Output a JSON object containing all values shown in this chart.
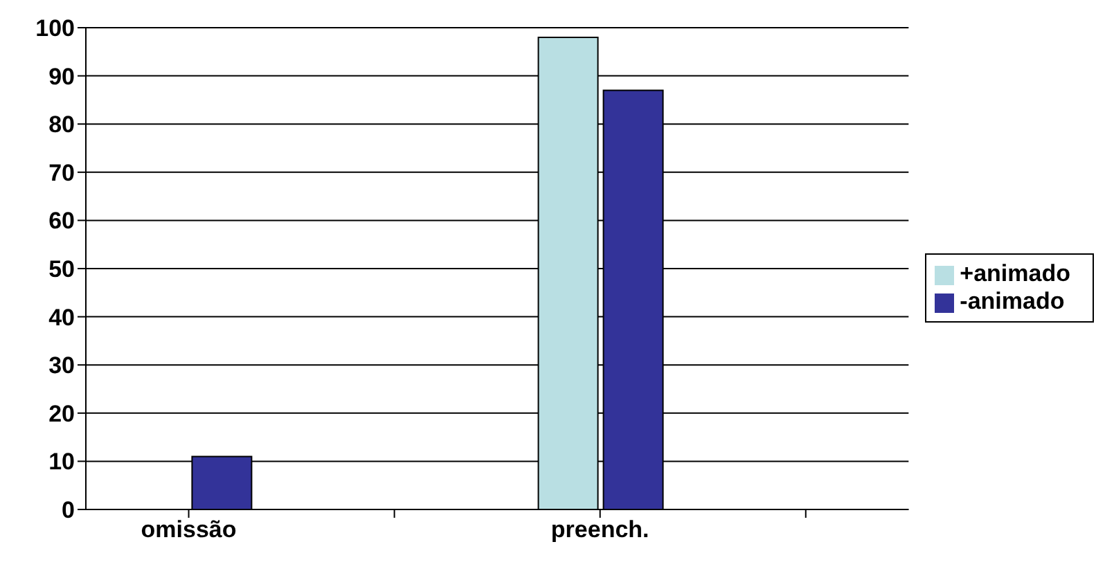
{
  "chart_data": {
    "type": "bar",
    "categories": [
      "omissão",
      null,
      "preench.",
      null
    ],
    "series": [
      {
        "name": "+animado",
        "color": "#b9dfe3",
        "values": [
          0,
          null,
          98,
          null
        ]
      },
      {
        "name": "-animado",
        "color": "#333399",
        "values": [
          11,
          null,
          87,
          null
        ]
      }
    ],
    "ylim": [
      0,
      100
    ],
    "yticks": [
      0,
      10,
      20,
      30,
      40,
      50,
      60,
      70,
      80,
      90,
      100
    ],
    "grid": "y",
    "legend": "right"
  }
}
